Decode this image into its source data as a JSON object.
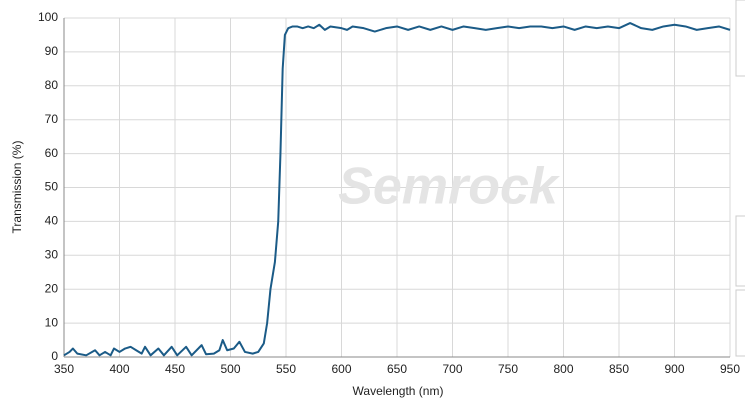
{
  "chart_data": {
    "type": "line",
    "watermark": "Semrock",
    "xlabel": "Wavelength (nm)",
    "ylabel": "Transmission (%)",
    "x": [
      350,
      355,
      358,
      362,
      370,
      378,
      382,
      387,
      392,
      395,
      400,
      405,
      410,
      415,
      420,
      423,
      428,
      435,
      440,
      447,
      452,
      460,
      465,
      474,
      478,
      485,
      490,
      493,
      497,
      503,
      508,
      513,
      520,
      525,
      530,
      533,
      536,
      540,
      543,
      545,
      547,
      549,
      552,
      556,
      560,
      565,
      570,
      575,
      580,
      585,
      590,
      600,
      605,
      610,
      620,
      630,
      640,
      650,
      660,
      670,
      680,
      690,
      700,
      710,
      720,
      730,
      740,
      750,
      760,
      770,
      780,
      790,
      800,
      810,
      820,
      830,
      840,
      850,
      860,
      870,
      880,
      890,
      900,
      910,
      920,
      930,
      940,
      950
    ],
    "series": [
      {
        "name": "Transmission",
        "color": "#1b5b87",
        "values": [
          0.5,
          1.5,
          2.5,
          1,
          0.5,
          2,
          0.5,
          1.5,
          0.5,
          2.5,
          1.5,
          2.5,
          3,
          2,
          1,
          3,
          0.5,
          2.5,
          0.5,
          3,
          0.5,
          3,
          0.5,
          3.5,
          0.8,
          1,
          2,
          5,
          2,
          2.5,
          4.5,
          1.5,
          1,
          1.5,
          4,
          10,
          20,
          28,
          40,
          60,
          85,
          95,
          97,
          97.5,
          97.5,
          97,
          97.5,
          97,
          98,
          96.5,
          97.5,
          97,
          96.5,
          97.5,
          97,
          96,
          97,
          97.5,
          96.5,
          97.5,
          96.5,
          97.5,
          96.5,
          97.5,
          97,
          96.5,
          97,
          97.5,
          97,
          97.5,
          97.5,
          97,
          97.5,
          96.5,
          97.5,
          97,
          97.5,
          97,
          98.5,
          97,
          96.5,
          97.5,
          98,
          97.5,
          96.5,
          97,
          97.5,
          96.5
        ]
      }
    ],
    "xlim": [
      350,
      950
    ],
    "xticks": [
      350,
      400,
      450,
      500,
      550,
      600,
      650,
      700,
      750,
      800,
      850,
      900,
      950
    ],
    "ylim": [
      0,
      100
    ],
    "yticks": [
      0,
      10,
      20,
      30,
      40,
      50,
      60,
      70,
      80,
      90,
      100
    ],
    "grid": true
  }
}
